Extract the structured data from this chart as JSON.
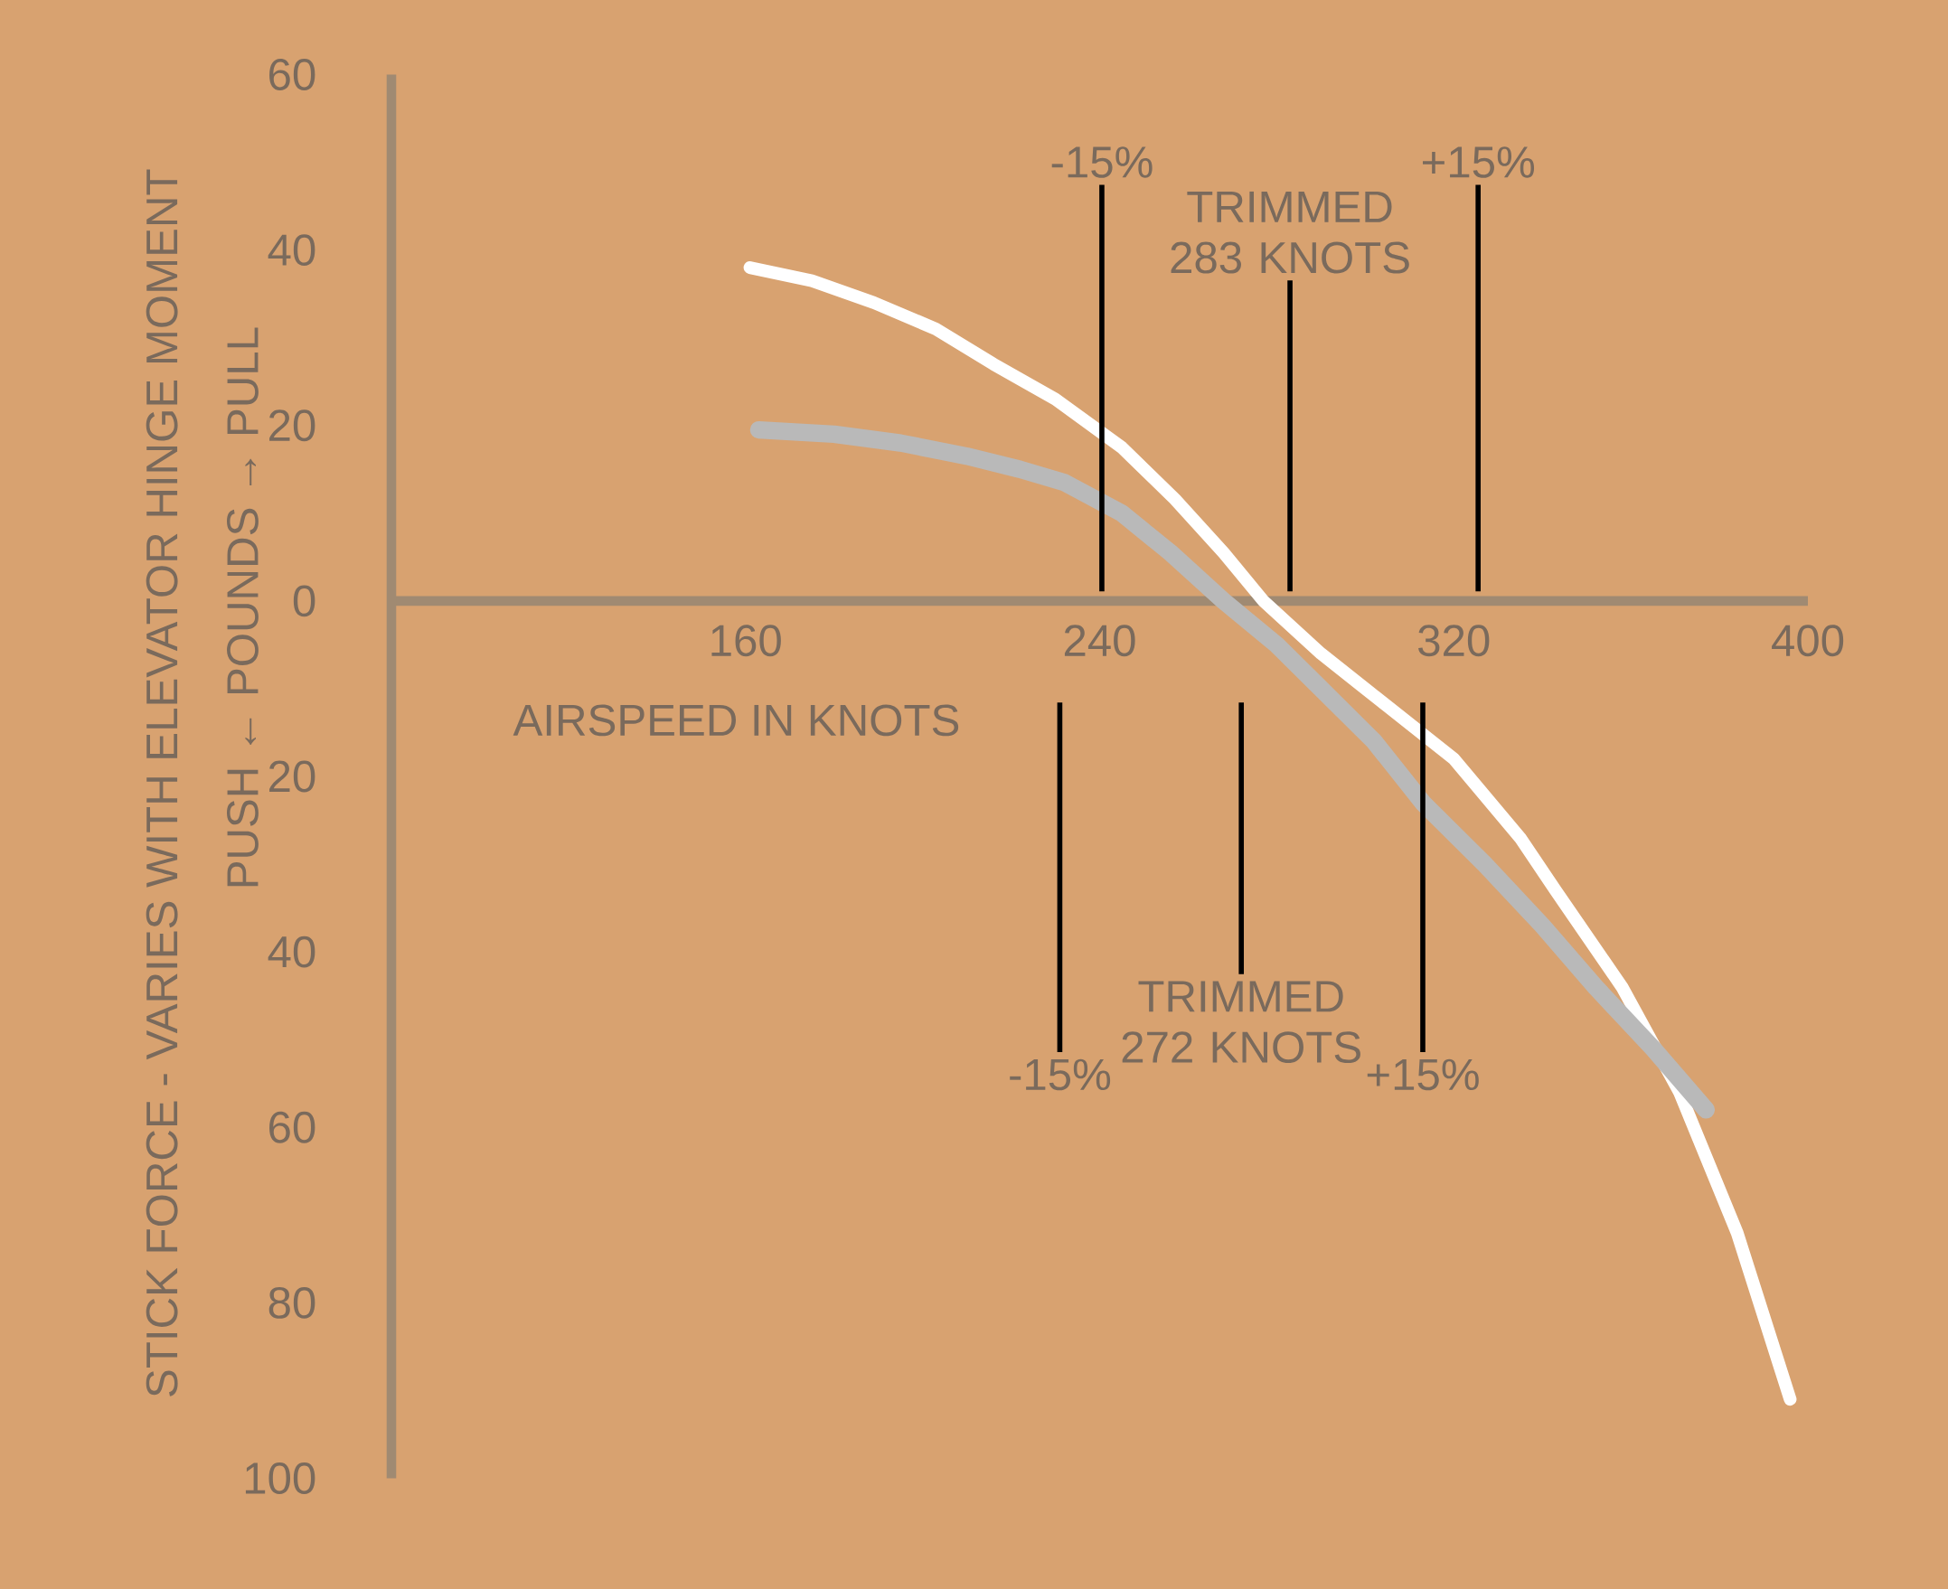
{
  "chart_data": {
    "type": "line",
    "xlabel": "AIRSPEED IN KNOTS",
    "ylabel": "STICK FORCE - VARIES WITH ELEVATOR HINGE MOMENT",
    "series": [
      {
        "color": "#ffffff",
        "x": [
          161,
          175,
          189,
          203,
          216,
          230,
          245,
          257,
          268,
          277,
          290,
          305,
          320,
          335,
          343,
          358,
          371,
          384,
          396
        ],
        "values": [
          38,
          36.5,
          34,
          31,
          27,
          23,
          17.5,
          11.6,
          5.5,
          0,
          -6,
          -12,
          -18,
          -27,
          -33,
          -44,
          -56,
          -72,
          -91
        ]
      },
      {
        "color": "#b9b9b9",
        "x": [
          163,
          180,
          195,
          210,
          222,
          232,
          245,
          256,
          268,
          280,
          290,
          302,
          313,
          327,
          340,
          352,
          365,
          377
        ],
        "values": [
          19.5,
          19,
          18,
          16.5,
          15,
          13.5,
          10,
          5.5,
          0,
          -5,
          -10,
          -16,
          -23,
          -30,
          -37,
          -44,
          -51,
          -58
        ]
      }
    ],
    "xlim": [
      80,
      400
    ],
    "ylim": [
      -100,
      60
    ],
    "xticks": [
      160,
      240,
      320,
      400
    ],
    "yticks": [
      {
        "value": -100,
        "label": "100"
      },
      {
        "value": -80,
        "label": "80"
      },
      {
        "value": -60,
        "label": "60"
      },
      {
        "value": -40,
        "label": "40"
      },
      {
        "value": -20,
        "label": "20"
      },
      0,
      20,
      40,
      60
    ],
    "grid": false,
    "marker": "none",
    "line_style": "solid",
    "annotations": [
      "PUSH ← POUNDS → PULL",
      "-15%",
      "+15%",
      "-15%",
      "+15%"
    ],
    "ref_lines": [
      {
        "axis": "x",
        "value": 240.5,
        "color": "#000000"
      },
      {
        "axis": "x",
        "value": 283,
        "label": "TRIMMED 283 KNOTS",
        "color": "#000000"
      },
      {
        "axis": "x",
        "value": 325.5,
        "color": "#000000"
      },
      {
        "axis": "x",
        "value": 231,
        "color": "#000000"
      },
      {
        "axis": "x",
        "value": 272,
        "label": "TRIMMED 272 KNOTS",
        "color": "#000000"
      },
      {
        "axis": "x",
        "value": 313,
        "color": "#000000"
      }
    ]
  }
}
